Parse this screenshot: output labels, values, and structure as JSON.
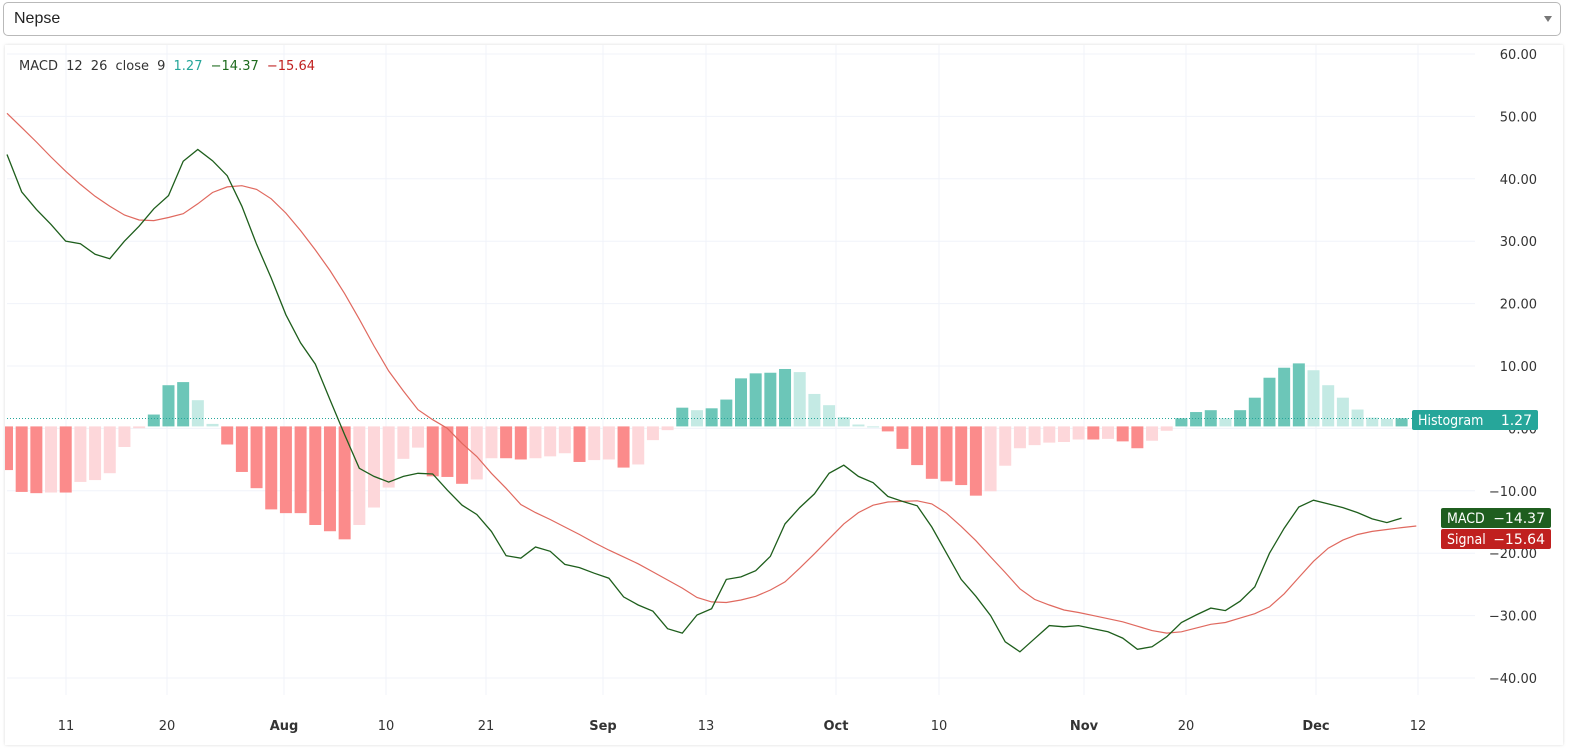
{
  "select": {
    "value": "Nepse",
    "icon": "chevron-down-icon"
  },
  "legend": {
    "name": "MACD",
    "fast": "12",
    "slow": "26",
    "source": "close",
    "signal_len": "9",
    "hist_value": "1.27",
    "macd_value": "−14.37",
    "signal_value": "−15.64"
  },
  "labels": {
    "histogram": "Histogram",
    "histogram_value": "1.27",
    "macd": "MACD",
    "macd_value": "−14.37",
    "signal": "Signal",
    "signal_value": "−15.64"
  },
  "colors": {
    "macd": "#1e5e1c",
    "signal": "#e0695f",
    "hist_up_strong": "#6cc6b8",
    "hist_up_weak": "#c4eae4",
    "hist_down_strong": "#fb8b8b",
    "hist_down_weak": "#fdd7da",
    "macd_label_bg": "#1f5e1f",
    "signal_label_bg": "#c0201f",
    "hist_label_bg": "#26a69a",
    "legend_hist": "#26a69a",
    "legend_macd": "#1e6b1e",
    "legend_signal": "#c0201f"
  },
  "chart_data": {
    "type": "bar",
    "indicator": "MACD 12 26 close 9",
    "yaxis": {
      "ticks": [
        "60.00",
        "50.00",
        "40.00",
        "30.00",
        "20.00",
        "10.00",
        "0.00",
        "−10.00",
        "−20.00",
        "−30.00",
        "−40.00"
      ],
      "ylim": [
        -40,
        60
      ]
    },
    "xaxis": {
      "ticks": [
        "11",
        "20",
        "Aug",
        "10",
        "21",
        "Sep",
        "13",
        "Oct",
        "10",
        "Nov",
        "20",
        "Dec",
        "12"
      ]
    },
    "grid": true,
    "histogram": [
      -7,
      -10.5,
      -10.7,
      -10.6,
      -10.6,
      -8.9,
      -8.6,
      -7.5,
      -3.3,
      -0.3,
      1.9,
      6.6,
      7.1,
      4.2,
      0.4,
      -2.9,
      -7.3,
      -9.9,
      -13.3,
      -13.9,
      -13.9,
      -15.8,
      -16.8,
      -18.1,
      -15.8,
      -13,
      -9.8,
      -5.2,
      -3.4,
      -8,
      -8.1,
      -9.2,
      -8.5,
      -5.1,
      -5.1,
      -5.3,
      -5.1,
      -4.8,
      -4.3,
      -5.7,
      -5.4,
      -5.3,
      -6.6,
      -6.1,
      -2.2,
      -0.6,
      3,
      2.6,
      2.9,
      4.3,
      7.7,
      8.5,
      8.6,
      9.2,
      8.7,
      5.2,
      3.4,
      1.5,
      0.3,
      0,
      -0.8,
      -3.6,
      -6.2,
      -8.4,
      -8.8,
      -9.4,
      -11.1,
      -10.4,
      -6.3,
      -3.5,
      -3,
      -2.6,
      -2.5,
      -2.1,
      -2.1,
      -2,
      -2.4,
      -3.5,
      -2.3,
      -0.7,
      1.3,
      2.3,
      2.6,
      1.3,
      2.6,
      4.6,
      7.8,
      9.4,
      10.1,
      9,
      6.6,
      4.6,
      2.7,
      1.4,
      1.2,
      1.3
    ],
    "series": [
      {
        "name": "MACD",
        "values": [
          43.9,
          37.9,
          35.1,
          32.7,
          30,
          29.6,
          27.9,
          27.2,
          30,
          32.4,
          35.2,
          37.3,
          42.8,
          44.7,
          42.9,
          40.5,
          35.6,
          29.5,
          24.1,
          18.2,
          13.7,
          10.3,
          4.6,
          -1,
          -6.4,
          -7.7,
          -8.6,
          -7.7,
          -7.2,
          -7.3,
          -9.9,
          -12.3,
          -13.8,
          -16.5,
          -20.4,
          -20.8,
          -19,
          -19.7,
          -21.8,
          -22.3,
          -23.2,
          -24,
          -27,
          -28.3,
          -29.3,
          -32.1,
          -32.8,
          -29.9,
          -28.9,
          -24.2,
          -23.8,
          -22.8,
          -20.5,
          -15.3,
          -12.7,
          -10.5,
          -7.2,
          -5.9,
          -7.7,
          -8.7,
          -10.9,
          -11.7,
          -12.4,
          -15.8,
          -20,
          -24.2,
          -26.9,
          -30,
          -34.2,
          -35.8,
          -33.7,
          -31.6,
          -31.8,
          -31.6,
          -32.1,
          -32.6,
          -33.6,
          -35.4,
          -35,
          -33.4,
          -31.1,
          -29.9,
          -28.8,
          -29.2,
          -27.7,
          -25.4,
          -20,
          -16,
          -12.6,
          -11.5,
          -12.1,
          -12.7,
          -13.5,
          -14.5,
          -15.1,
          -14.37
        ]
      },
      {
        "name": "Signal",
        "values": [
          50.5,
          48.2,
          45.9,
          43.5,
          41.2,
          39.1,
          37.2,
          35.6,
          34.2,
          33.4,
          33.3,
          33.8,
          34.4,
          36,
          37.8,
          38.7,
          38.9,
          38.3,
          36.8,
          34.5,
          31.7,
          28.6,
          25.3,
          21.6,
          17.5,
          13.2,
          9.2,
          6,
          3,
          1.4,
          0,
          -2.4,
          -4.5,
          -7.2,
          -9.6,
          -12.2,
          -13.5,
          -14.6,
          -15.8,
          -17,
          -18.3,
          -19.5,
          -20.6,
          -21.7,
          -23,
          -24.3,
          -25.6,
          -27.1,
          -27.8,
          -27.9,
          -27.5,
          -26.9,
          -25.9,
          -24.6,
          -22.4,
          -20.1,
          -17.7,
          -15.3,
          -13.5,
          -12.3,
          -11.8,
          -11.7,
          -11.6,
          -12.1,
          -13.6,
          -15.7,
          -18,
          -20.6,
          -23.1,
          -25.7,
          -27.4,
          -28.3,
          -29.1,
          -29.5,
          -30,
          -30.5,
          -31,
          -31.7,
          -32.4,
          -32.8,
          -32.6,
          -32,
          -31.4,
          -31.1,
          -30.4,
          -29.7,
          -28.6,
          -26.5,
          -23.9,
          -21.3,
          -19.2,
          -17.9,
          -17,
          -16.5,
          -16.2,
          -15.9,
          -15.64
        ]
      }
    ]
  }
}
